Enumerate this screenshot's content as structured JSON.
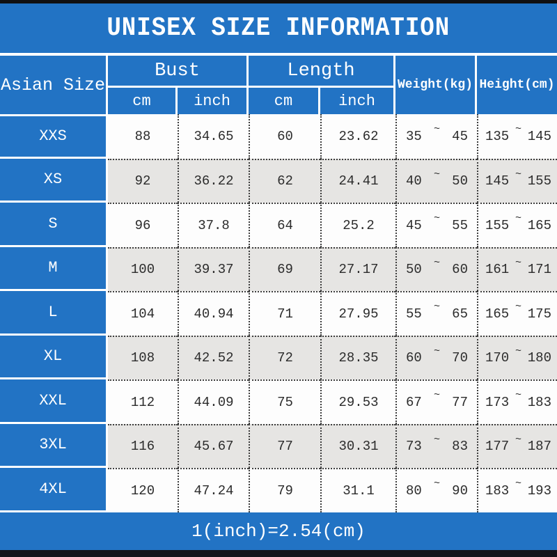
{
  "title": "UNISEX SIZE INFORMATION",
  "colors": {
    "accent_blue": "#2273c4",
    "row_alt_gray": "#e6e5e3",
    "row_white": "#fdfdfd",
    "text_dark": "#2b2b2b",
    "strip_dark": "#14141b"
  },
  "table": {
    "corner_header": "Asian Size",
    "groups": [
      {
        "label": "Bust",
        "sub": [
          "cm",
          "inch"
        ]
      },
      {
        "label": "Length",
        "sub": [
          "cm",
          "inch"
        ]
      }
    ],
    "single_headers": [
      "Weight(kg)",
      "Height(cm)"
    ],
    "tilde": "~",
    "rows": [
      {
        "size": "XXS",
        "bust_cm": "88",
        "bust_inch": "34.65",
        "length_cm": "60",
        "length_inch": "23.62",
        "weight_min": "35",
        "weight_max": "45",
        "height_min": "135",
        "height_max": "145"
      },
      {
        "size": "XS",
        "bust_cm": "92",
        "bust_inch": "36.22",
        "length_cm": "62",
        "length_inch": "24.41",
        "weight_min": "40",
        "weight_max": "50",
        "height_min": "145",
        "height_max": "155"
      },
      {
        "size": "S",
        "bust_cm": "96",
        "bust_inch": "37.8",
        "length_cm": "64",
        "length_inch": "25.2",
        "weight_min": "45",
        "weight_max": "55",
        "height_min": "155",
        "height_max": "165"
      },
      {
        "size": "M",
        "bust_cm": "100",
        "bust_inch": "39.37",
        "length_cm": "69",
        "length_inch": "27.17",
        "weight_min": "50",
        "weight_max": "60",
        "height_min": "161",
        "height_max": "171"
      },
      {
        "size": "L",
        "bust_cm": "104",
        "bust_inch": "40.94",
        "length_cm": "71",
        "length_inch": "27.95",
        "weight_min": "55",
        "weight_max": "65",
        "height_min": "165",
        "height_max": "175"
      },
      {
        "size": "XL",
        "bust_cm": "108",
        "bust_inch": "42.52",
        "length_cm": "72",
        "length_inch": "28.35",
        "weight_min": "60",
        "weight_max": "70",
        "height_min": "170",
        "height_max": "180"
      },
      {
        "size": "XXL",
        "bust_cm": "112",
        "bust_inch": "44.09",
        "length_cm": "75",
        "length_inch": "29.53",
        "weight_min": "67",
        "weight_max": "77",
        "height_min": "173",
        "height_max": "183"
      },
      {
        "size": "3XL",
        "bust_cm": "116",
        "bust_inch": "45.67",
        "length_cm": "77",
        "length_inch": "30.31",
        "weight_min": "73",
        "weight_max": "83",
        "height_min": "177",
        "height_max": "187"
      },
      {
        "size": "4XL",
        "bust_cm": "120",
        "bust_inch": "47.24",
        "length_cm": "79",
        "length_inch": "31.1",
        "weight_min": "80",
        "weight_max": "90",
        "height_min": "183",
        "height_max": "193"
      }
    ]
  },
  "footer": {
    "note": "1(inch)=2.54(cm)"
  }
}
